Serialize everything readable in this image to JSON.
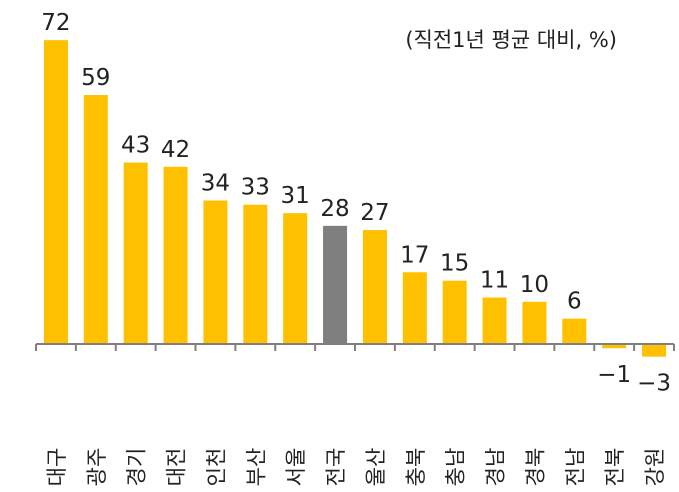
{
  "chart_data": {
    "type": "bar",
    "annotation": "(직전1년 평균 대비, %)",
    "categories": [
      "대구",
      "광주",
      "경기",
      "대전",
      "인천",
      "부산",
      "서울",
      "전국",
      "울산",
      "충북",
      "충남",
      "경남",
      "경북",
      "전남",
      "전북",
      "강원"
    ],
    "values": [
      72,
      59,
      43,
      42,
      34,
      33,
      31,
      28,
      27,
      17,
      15,
      11,
      10,
      6,
      -1,
      -3
    ],
    "ylim": [
      -3,
      75
    ],
    "grid": false,
    "legend": "none",
    "colors": {
      "default": "#FFC000",
      "highlight": "#7F7F7F",
      "axis": "#808080"
    },
    "highlight_category": "전국"
  }
}
